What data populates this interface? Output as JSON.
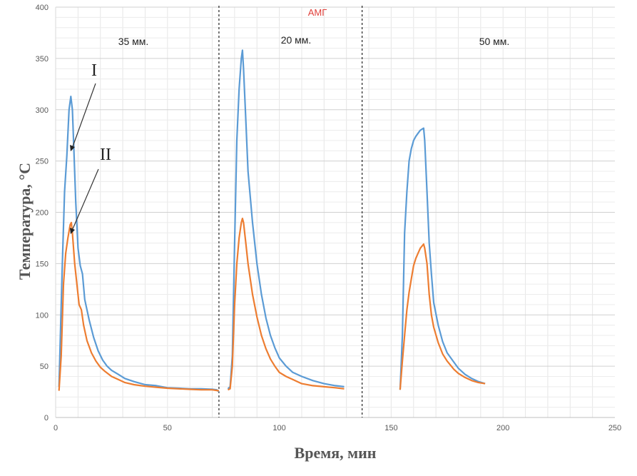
{
  "chart_data": {
    "type": "line",
    "title": "АМГ",
    "xlabel": "Время, мин",
    "ylabel": "Температура, °С",
    "xlim": [
      0,
      250
    ],
    "ylim": [
      0,
      400
    ],
    "x_ticks": [
      "0",
      "50",
      "100",
      "150",
      "200",
      "250"
    ],
    "y_ticks": [
      "0",
      "50",
      "100",
      "150",
      "200",
      "250",
      "300",
      "350",
      "400"
    ],
    "grid": true,
    "dividers_x": [
      73,
      137
    ],
    "segment_labels": [
      "35 мм.",
      "20 мм.",
      "50 мм."
    ],
    "annotations": [
      "I",
      "II"
    ],
    "series": [
      {
        "color": "#5b9bd5",
        "segments": [
          [
            [
              1.5,
              30
            ],
            [
              3,
              150
            ],
            [
              4,
              220
            ],
            [
              5,
              255
            ],
            [
              6,
              300
            ],
            [
              6.8,
              313
            ],
            [
              7.5,
              300
            ],
            [
              8,
              270
            ],
            [
              9,
              210
            ],
            [
              10,
              165
            ],
            [
              11,
              148
            ],
            [
              12,
              140
            ],
            [
              13,
              115
            ],
            [
              15,
              95
            ],
            [
              17,
              78
            ],
            [
              19,
              65
            ],
            [
              21,
              56
            ],
            [
              23,
              50
            ],
            [
              25,
              46
            ],
            [
              28,
              42
            ],
            [
              31,
              38
            ],
            [
              35,
              35
            ],
            [
              40,
              32
            ],
            [
              45,
              31
            ],
            [
              50,
              29
            ],
            [
              55,
              28.5
            ],
            [
              60,
              28
            ],
            [
              65,
              28
            ],
            [
              70,
              27.5
            ],
            [
              72,
              27
            ],
            [
              73,
              25
            ]
          ],
          [
            [
              77,
              28
            ],
            [
              78,
              30
            ],
            [
              79,
              60
            ],
            [
              80,
              170
            ],
            [
              81,
              270
            ],
            [
              82,
              320
            ],
            [
              83,
              350
            ],
            [
              83.5,
              358
            ],
            [
              84,
              340
            ],
            [
              85,
              290
            ],
            [
              86,
              240
            ],
            [
              88,
              190
            ],
            [
              90,
              150
            ],
            [
              92,
              120
            ],
            [
              94,
              97
            ],
            [
              96,
              80
            ],
            [
              98,
              68
            ],
            [
              100,
              58
            ],
            [
              103,
              50
            ],
            [
              106,
              44
            ],
            [
              110,
              40
            ],
            [
              115,
              36
            ],
            [
              120,
              33
            ],
            [
              125,
              31
            ],
            [
              129,
              30
            ]
          ],
          [
            [
              154,
              27
            ],
            [
              155,
              80
            ],
            [
              156,
              180
            ],
            [
              157,
              220
            ],
            [
              158,
              250
            ],
            [
              159,
              262
            ],
            [
              160,
              270
            ],
            [
              161,
              274
            ],
            [
              162,
              277
            ],
            [
              163,
              280
            ],
            [
              164.5,
              282
            ],
            [
              165,
              270
            ],
            [
              166,
              220
            ],
            [
              167,
              170
            ],
            [
              168,
              140
            ],
            [
              169,
              112
            ],
            [
              171,
              90
            ],
            [
              173,
              74
            ],
            [
              175,
              63
            ],
            [
              178,
              54
            ],
            [
              180,
              48
            ],
            [
              183,
              42
            ],
            [
              186,
              38
            ],
            [
              189,
              35
            ],
            [
              192,
              33
            ]
          ]
        ]
      },
      {
        "color": "#ed7d31",
        "segments": [
          [
            [
              1.5,
              26
            ],
            [
              2.5,
              60
            ],
            [
              3.5,
              130
            ],
            [
              4.5,
              160
            ],
            [
              5.5,
              175
            ],
            [
              6.5,
              188
            ],
            [
              7,
              190
            ],
            [
              7.5,
              180
            ],
            [
              8.5,
              150
            ],
            [
              9.5,
              130
            ],
            [
              10.5,
              110
            ],
            [
              11.5,
              105
            ],
            [
              12.5,
              90
            ],
            [
              14,
              75
            ],
            [
              16,
              63
            ],
            [
              18,
              55
            ],
            [
              20,
              49
            ],
            [
              22,
              45
            ],
            [
              25,
              40
            ],
            [
              28,
              37
            ],
            [
              31,
              34
            ],
            [
              35,
              32
            ],
            [
              40,
              30.5
            ],
            [
              45,
              29.5
            ],
            [
              50,
              28.5
            ],
            [
              55,
              28
            ],
            [
              60,
              27.5
            ],
            [
              65,
              27
            ],
            [
              70,
              27
            ],
            [
              73,
              26
            ]
          ],
          [
            [
              77,
              27
            ],
            [
              78,
              28
            ],
            [
              79,
              50
            ],
            [
              80,
              110
            ],
            [
              81,
              150
            ],
            [
              82,
              175
            ],
            [
              83,
              190
            ],
            [
              83.5,
              194
            ],
            [
              84,
              190
            ],
            [
              85,
              170
            ],
            [
              86,
              150
            ],
            [
              88,
              120
            ],
            [
              90,
              98
            ],
            [
              92,
              80
            ],
            [
              94,
              67
            ],
            [
              96,
              57
            ],
            [
              98,
              50
            ],
            [
              100,
              44
            ],
            [
              103,
              40
            ],
            [
              106,
              37
            ],
            [
              110,
              33
            ],
            [
              115,
              31
            ],
            [
              120,
              30
            ],
            [
              125,
              29
            ],
            [
              129,
              28
            ]
          ],
          [
            [
              154,
              27
            ],
            [
              155,
              55
            ],
            [
              156,
              80
            ],
            [
              157,
              105
            ],
            [
              158,
              122
            ],
            [
              159,
              135
            ],
            [
              160,
              148
            ],
            [
              161,
              155
            ],
            [
              162,
              160
            ],
            [
              163,
              165
            ],
            [
              164.5,
              169
            ],
            [
              165,
              165
            ],
            [
              166,
              150
            ],
            [
              167,
              120
            ],
            [
              168,
              100
            ],
            [
              169,
              88
            ],
            [
              171,
              73
            ],
            [
              173,
              62
            ],
            [
              175,
              55
            ],
            [
              178,
              47
            ],
            [
              180,
              43
            ],
            [
              183,
              39
            ],
            [
              186,
              36
            ],
            [
              189,
              34
            ],
            [
              192,
              33
            ]
          ]
        ]
      }
    ]
  }
}
